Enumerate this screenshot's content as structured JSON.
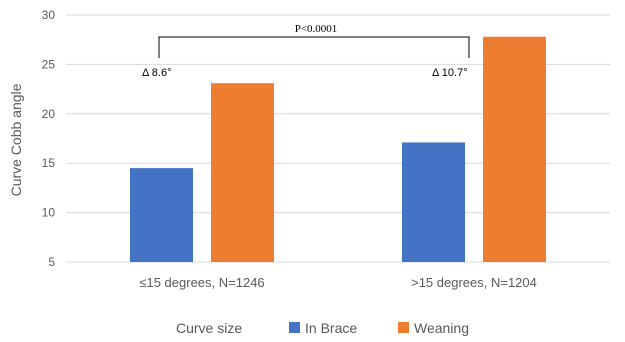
{
  "chart_data": {
    "type": "bar",
    "categories": [
      "≤15 degrees, N=1246",
      ">15 degrees, N=1204"
    ],
    "series": [
      {
        "name": "In Brace",
        "values": [
          14.5,
          17.1
        ],
        "color": "#4472C4"
      },
      {
        "name": "Weaning",
        "values": [
          23.1,
          27.8
        ],
        "color": "#ED7D31"
      }
    ],
    "ylabel": "Curve Cobb angle",
    "ylim": [
      5,
      30
    ],
    "yticks": [
      5,
      10,
      15,
      20,
      25,
      30
    ],
    "grid": true,
    "legend": {
      "title": "Curve size",
      "placement": "bottom"
    },
    "annotations": [
      {
        "text": "Δ 8.6°",
        "category": 0
      },
      {
        "text": "Δ 10.7°",
        "category": 1
      }
    ],
    "comparison": {
      "label": "P<0.0001"
    }
  }
}
